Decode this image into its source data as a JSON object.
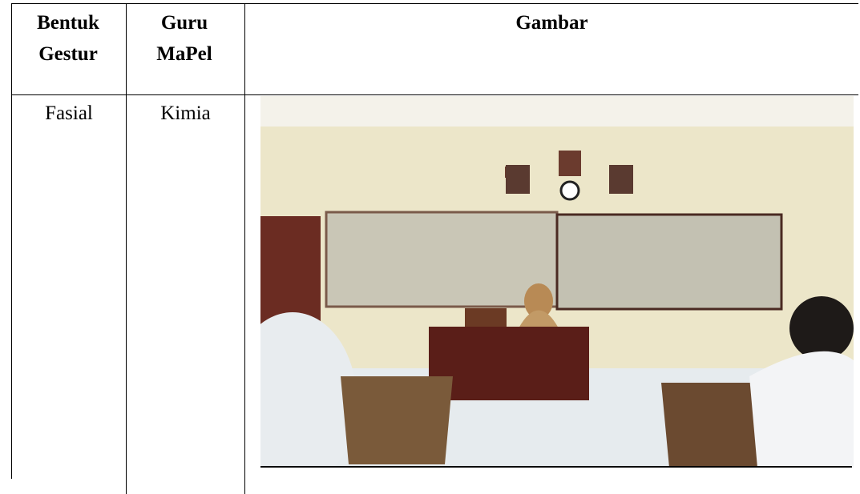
{
  "table": {
    "header": [
      "Bentuk Gestur",
      "Guru MaPel",
      "Gambar"
    ],
    "rows": [
      [
        "Fasial",
        "Kimia"
      ]
    ]
  }
}
